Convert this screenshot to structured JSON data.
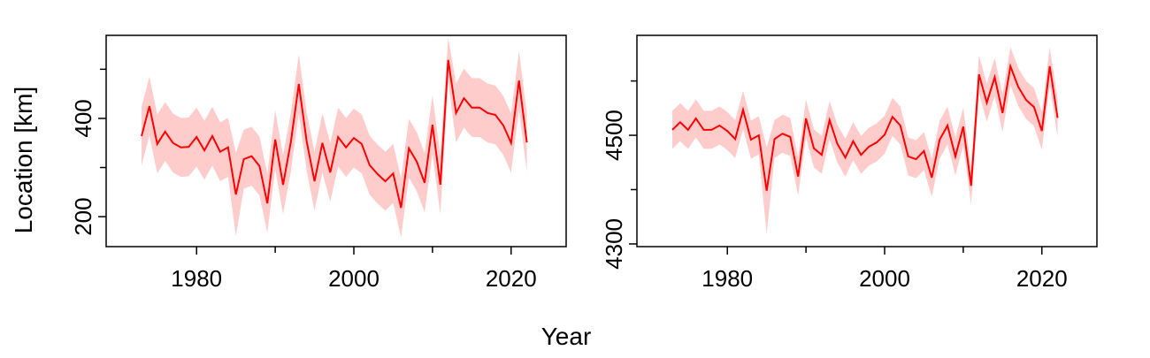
{
  "xlabel": "Year",
  "ylabel": "Location [km]",
  "chart_data": [
    {
      "type": "line",
      "color": "#ff0000",
      "band_color": "#ffcccc",
      "x": [
        1973,
        1974,
        1975,
        1976,
        1977,
        1978,
        1979,
        1980,
        1981,
        1982,
        1983,
        1984,
        1985,
        1986,
        1987,
        1988,
        1989,
        1990,
        1991,
        1992,
        1993,
        1994,
        1995,
        1996,
        1997,
        1998,
        1999,
        2000,
        2001,
        2002,
        2003,
        2004,
        2005,
        2006,
        2007,
        2008,
        2009,
        2010,
        2011,
        2012,
        2013,
        2014,
        2015,
        2016,
        2017,
        2018,
        2019,
        2020,
        2021,
        2022
      ],
      "values": [
        364,
        425,
        348,
        373,
        350,
        341,
        342,
        362,
        335,
        364,
        332,
        341,
        245,
        317,
        323,
        303,
        227,
        357,
        265,
        353,
        470,
        353,
        272,
        350,
        290,
        362,
        341,
        360,
        348,
        305,
        287,
        272,
        288,
        218,
        339,
        312,
        269,
        387,
        265,
        519,
        411,
        441,
        422,
        422,
        411,
        407,
        386,
        350,
        477,
        351
      ],
      "lower": [
        304,
        365,
        288,
        313,
        290,
        281,
        282,
        302,
        275,
        304,
        272,
        281,
        160,
        257,
        263,
        243,
        167,
        297,
        205,
        293,
        410,
        293,
        212,
        290,
        230,
        302,
        281,
        300,
        288,
        245,
        227,
        212,
        228,
        158,
        279,
        252,
        209,
        327,
        205,
        474,
        351,
        381,
        362,
        362,
        351,
        347,
        326,
        290,
        417,
        291
      ],
      "upper": [
        424,
        485,
        408,
        433,
        410,
        401,
        402,
        422,
        395,
        424,
        392,
        401,
        330,
        377,
        383,
        363,
        287,
        417,
        325,
        413,
        530,
        413,
        332,
        410,
        350,
        422,
        401,
        420,
        408,
        365,
        347,
        332,
        348,
        278,
        399,
        372,
        329,
        447,
        325,
        564,
        471,
        501,
        482,
        482,
        471,
        467,
        446,
        410,
        537,
        411
      ],
      "xlim": [
        1968.5,
        2027
      ],
      "xticks": [
        1980,
        2000,
        2020
      ],
      "xminorticks": [
        1990,
        2010
      ],
      "ylim": [
        139,
        569
      ],
      "yticks": [
        200,
        400
      ],
      "yminorticks": [
        300,
        500
      ]
    },
    {
      "type": "line",
      "color": "#ff0000",
      "band_color": "#ffcccc",
      "x": [
        1973,
        1974,
        1975,
        1976,
        1977,
        1978,
        1979,
        1980,
        1981,
        1982,
        1983,
        1984,
        1985,
        1986,
        1987,
        1988,
        1989,
        1990,
        1991,
        1992,
        1993,
        1994,
        1995,
        1996,
        1997,
        1998,
        1999,
        2000,
        2001,
        2002,
        2003,
        2004,
        2005,
        2006,
        2007,
        2008,
        2009,
        2010,
        2011,
        2012,
        2013,
        2014,
        2015,
        2016,
        2017,
        2018,
        2019,
        2020,
        2021,
        2022
      ],
      "values": [
        4510,
        4524,
        4510,
        4531,
        4510,
        4510,
        4518,
        4508,
        4493,
        4547,
        4492,
        4500,
        4398,
        4493,
        4503,
        4497,
        4424,
        4531,
        4476,
        4464,
        4528,
        4484,
        4459,
        4489,
        4464,
        4479,
        4487,
        4501,
        4534,
        4518,
        4461,
        4456,
        4471,
        4422,
        4492,
        4518,
        4461,
        4516,
        4407,
        4612,
        4560,
        4607,
        4541,
        4627,
        4589,
        4565,
        4552,
        4508,
        4627,
        4532
      ],
      "lower": [
        4475,
        4489,
        4475,
        4496,
        4475,
        4475,
        4483,
        4473,
        4458,
        4512,
        4457,
        4465,
        4318,
        4458,
        4468,
        4462,
        4389,
        4496,
        4441,
        4429,
        4493,
        4449,
        4424,
        4454,
        4429,
        4444,
        4452,
        4466,
        4499,
        4483,
        4426,
        4421,
        4436,
        4387,
        4457,
        4483,
        4426,
        4481,
        4372,
        4577,
        4525,
        4572,
        4506,
        4592,
        4554,
        4530,
        4517,
        4473,
        4592,
        4497
      ],
      "upper": [
        4545,
        4559,
        4545,
        4566,
        4545,
        4545,
        4553,
        4543,
        4528,
        4582,
        4527,
        4535,
        4478,
        4528,
        4538,
        4532,
        4459,
        4566,
        4511,
        4499,
        4563,
        4519,
        4494,
        4524,
        4499,
        4514,
        4522,
        4536,
        4569,
        4553,
        4496,
        4491,
        4506,
        4457,
        4527,
        4553,
        4496,
        4551,
        4442,
        4647,
        4595,
        4642,
        4576,
        4662,
        4624,
        4600,
        4587,
        4543,
        4662,
        4567
      ],
      "xlim": [
        1968.5,
        2027
      ],
      "xticks": [
        1980,
        2000,
        2020
      ],
      "xminorticks": [
        1990,
        2010
      ],
      "ylim": [
        4295,
        4684
      ],
      "yticks": [
        4300,
        4500
      ],
      "yminorticks": [
        4400,
        4600
      ]
    }
  ]
}
